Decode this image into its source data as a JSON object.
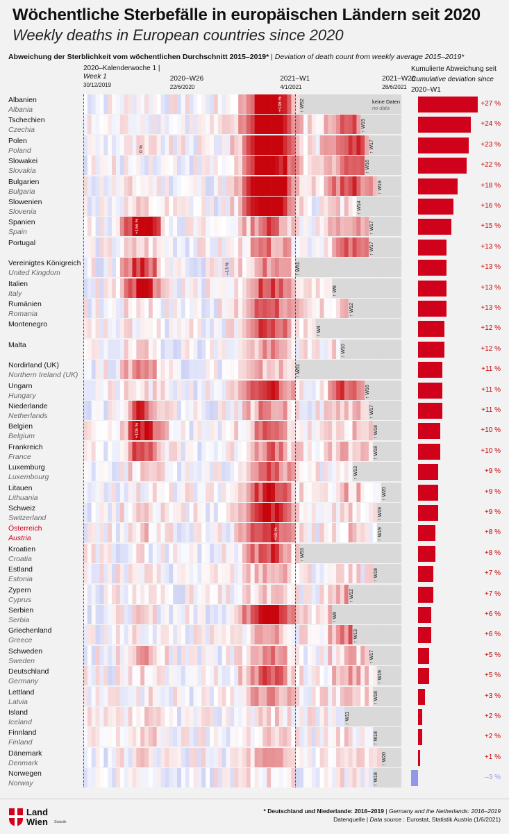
{
  "header": {
    "title": "Wöchentliche Sterbefälle in europäischen Ländern seit 2020",
    "subtitle": "Weekly deaths in European countries since 2020",
    "axis_de": "Abweichung der Sterblichkeit vom wöchentlichen Durchschnitt",
    "axis_years": "2015–2019*",
    "axis_en": "Deviation of death count from weekly average 2015–2019*",
    "cum_de": "Kumulierte Abweichung seit",
    "cum_en": "Cumulative deviation since",
    "cum_w": "2020–W1"
  },
  "ticks": [
    {
      "l1": "2020–Kalenderwoche 1 |",
      "l2": "Week 1",
      "l3": "30/12/2019"
    },
    {
      "l1": "2020–W26",
      "l2": "",
      "l3": "22/6/2020"
    },
    {
      "l1": "2021–W1",
      "l2": "",
      "l3": "4/1/2021"
    },
    {
      "l1": "2021–W26",
      "l2": "",
      "l3": "28/6/2021"
    }
  ],
  "nodata": {
    "de": "keine Daten",
    "en": "no data"
  },
  "footer": {
    "logo_line1": "Land",
    "logo_line2": "Wien",
    "logo_sub": "Statistik",
    "note_de": "* Deutschland und Niederlande: 2016–2019",
    "note_en": "Germany and the Netherlands: 2016–2019",
    "source_de": "Datenquelle",
    "source_en": "Data source",
    "source_val": ": Eurostat, Statistik Austria (1/6/2021)"
  },
  "colors": {
    "positive": "#d0021b",
    "negative": "#3a4fd8",
    "nodata": "#d9d9d9"
  },
  "chart_data": {
    "type": "heatmap",
    "x_range_weeks": [
      1,
      78
    ],
    "categories_de": [
      "Albanien",
      "Tschechien",
      "Polen",
      "Slowakei",
      "Bulgarien",
      "Slowenien",
      "Spanien",
      "Portugal",
      "Vereinigtes Königreich",
      "Italien",
      "Rumänien",
      "Montenegro",
      "Malta",
      "Nordirland (UK)",
      "Ungarn",
      "Niederlande",
      "Belgien",
      "Frankreich",
      "Luxemburg",
      "Litauen",
      "Schweiz",
      "Österreich",
      "Kroatien",
      "Estland",
      "Zypern",
      "Serbien",
      "Griechenland",
      "Schweden",
      "Deutschland",
      "Lettland",
      "Island",
      "Finnland",
      "Dänemark",
      "Norwegen"
    ],
    "categories_en": [
      "Albania",
      "Czechia",
      "Poland",
      "Slovakia",
      "Bulgaria",
      "Slovenia",
      "Spain",
      "",
      "United Kingdom",
      "Italy",
      "Romania",
      "",
      "",
      "Northern Ireland (UK)",
      "Hungary",
      "Netherlands",
      "Belgium",
      "France",
      "Luxembourg",
      "Lithuania",
      "Switzerland",
      "Austria",
      "Croatia",
      "Estonia",
      "Cyprus",
      "Serbia",
      "Greece",
      "Sweden",
      "Germany",
      "Latvia",
      "Iceland",
      "Finland",
      "Denmark",
      "Norway"
    ],
    "last_week_label": [
      "W52",
      "W15",
      "W17",
      "W16",
      "W19",
      "W14",
      "W17",
      "W17",
      "W51",
      "W8",
      "W12",
      "W4",
      "W10",
      "W51",
      "W16",
      "W17",
      "W18",
      "W18",
      "W13",
      "W20",
      "W19",
      "W19",
      "W53",
      "W18",
      "W12",
      "W8",
      "W13",
      "W17",
      "W19",
      "W18",
      "W11",
      "W18",
      "W20",
      "W18"
    ],
    "last_week_index": [
      53,
      68,
      70,
      69,
      72,
      67,
      70,
      70,
      52,
      61,
      65,
      57,
      63,
      52,
      69,
      70,
      71,
      71,
      66,
      73,
      72,
      72,
      53,
      71,
      65,
      61,
      66,
      70,
      72,
      71,
      64,
      71,
      73,
      71
    ],
    "cumulative_deviation_pct": [
      27,
      24,
      23,
      22,
      18,
      16,
      15,
      13,
      13,
      13,
      13,
      12,
      12,
      11,
      11,
      11,
      10,
      10,
      9,
      9,
      9,
      8,
      8,
      7,
      7,
      6,
      6,
      5,
      5,
      3,
      2,
      2,
      1,
      -3
    ],
    "cumulative_labels": [
      "+27 %",
      "+24 %",
      "+23 %",
      "+22 %",
      "+18 %",
      "+16 %",
      "+15 %",
      "+13 %",
      "+13 %",
      "+13 %",
      "+13 %",
      "+12 %",
      "+12 %",
      "+11 %",
      "+11 %",
      "+11 %",
      "+10 %",
      "+10 %",
      "+9 %",
      "+9 %",
      "+9 %",
      "+8 %",
      "+8 %",
      "+7 %",
      "+7 %",
      "+6 %",
      "+6 %",
      "+5 %",
      "+5 %",
      "+3 %",
      "+2 %",
      "+2 %",
      "+1 %",
      "–3 %"
    ],
    "highlight_index": 21,
    "annotations": [
      {
        "row": 0,
        "week": 49,
        "text": "+136 %"
      },
      {
        "row": 2,
        "week": 15,
        "text": "0 %"
      },
      {
        "row": 6,
        "week": 14,
        "text": "+156 %"
      },
      {
        "row": 8,
        "week": 36,
        "text": "–13 %"
      },
      {
        "row": 16,
        "week": 14,
        "text": "+105 %"
      },
      {
        "row": 21,
        "week": 48,
        "text": "+59 %"
      }
    ]
  }
}
